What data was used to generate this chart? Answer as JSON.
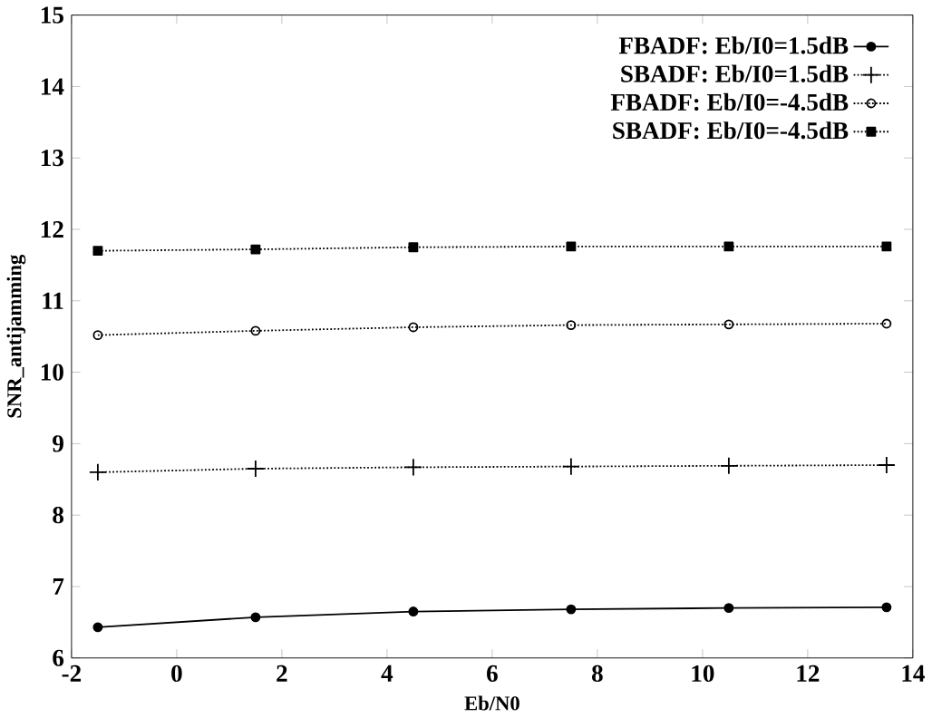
{
  "chart_data": {
    "type": "line",
    "xlabel": "Eb/N0",
    "ylabel": "SNR_antijamming",
    "x": [
      -1.5,
      1.5,
      4.5,
      7.5,
      10.5,
      13.5
    ],
    "series": [
      {
        "name": "FBADF: Eb/I0=1.5dB",
        "color": "#000000",
        "marker": "circle",
        "line_style": "solid",
        "values": [
          6.43,
          6.57,
          6.65,
          6.68,
          6.7,
          6.71
        ]
      },
      {
        "name": "SBADF: Eb/I0=1.5dB",
        "color": "#000000",
        "marker": "cross",
        "line_style": "dotted",
        "values": [
          8.6,
          8.65,
          8.67,
          8.68,
          8.69,
          8.7
        ]
      },
      {
        "name": "FBADF: Eb/I0=-4.5dB",
        "color": "#000000",
        "marker": "circle",
        "line_style": "dotted",
        "values": [
          10.52,
          10.58,
          10.63,
          10.66,
          10.67,
          10.68
        ]
      },
      {
        "name": "SBADF: Eb/I0=-4.5dB",
        "color": "#000000",
        "marker": "square",
        "line_style": "dotted",
        "values": [
          11.7,
          11.72,
          11.75,
          11.76,
          11.76,
          11.76
        ]
      }
    ],
    "xlim": [
      -2,
      14
    ],
    "xticks": [
      -2,
      0,
      2,
      4,
      6,
      8,
      10,
      12,
      14
    ],
    "ylim": [
      6,
      15
    ],
    "yticks": [
      6,
      7,
      8,
      9,
      10,
      11,
      12,
      13,
      14,
      15
    ],
    "legend": "top right"
  }
}
